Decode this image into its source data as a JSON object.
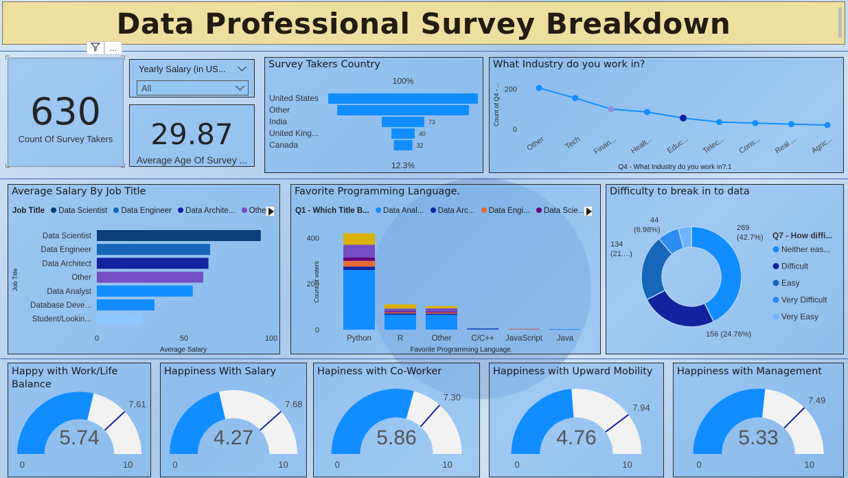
{
  "title": "Data Professional Survey Breakdown",
  "kpis": {
    "count": {
      "value": "630",
      "label": "Count Of Survey Takers"
    },
    "age": {
      "value": "29.87",
      "label": "Average Age Of Survey ..."
    }
  },
  "slicer": {
    "header": "Yearly Salary (in US...",
    "value": "All"
  },
  "visual_header": {
    "filter_icon": "filter-icon",
    "more_icon": "more-options-icon",
    "more_label": "..."
  },
  "country": {
    "title": "Survey Takers Country",
    "top_label": "100%",
    "bottom_label": "12.3%"
  },
  "industry": {
    "title": "What Industry do you work in?",
    "y_axis_label": "Count of Q4 - ...",
    "x_axis_label": "Q4 - What Industry do you work in?.1"
  },
  "salary": {
    "title": "Average Salary By Job Title",
    "legend_title": "Job Title",
    "legend": [
      "Data Scientist",
      "Data Engineer",
      "Data Archite...",
      "Other"
    ],
    "y_axis_label": "Job Title",
    "x_axis_label": "Average Salary"
  },
  "language": {
    "title": "Favorite Programming Language.",
    "legend_title": "Q1 - Which Title B...",
    "legend": [
      "Data Anal...",
      "Data Arc...",
      "Data Engi...",
      "Data Scie..."
    ],
    "y_axis_label": "Count of voters",
    "x_axis_label": "Favorite Programming Language."
  },
  "difficulty": {
    "title": "Difficulty to break in to data",
    "legend_title": "Q7 - How diffi...",
    "labels": {
      "a_line1": "269",
      "a_line2": "(42.7%)",
      "b_line1": "156 (24.76%)",
      "c_line1": "134",
      "c_line2": "(21....)",
      "d_line1": "44",
      "d_line2": "(6.98%)"
    }
  },
  "gauges": [
    {
      "title": "Happy with Work/Life Balance",
      "value": "5.74",
      "target": "7.61",
      "min": "0",
      "max": "10",
      "v": 5.74,
      "t": 7.61
    },
    {
      "title": "Happiness With Salary",
      "value": "4.27",
      "target": "7.68",
      "min": "0",
      "max": "10",
      "v": 4.27,
      "t": 7.68
    },
    {
      "title": "Hapiness with Co-Worker",
      "value": "5.86",
      "target": "7.30",
      "min": "0",
      "max": "10",
      "v": 5.86,
      "t": 7.3
    },
    {
      "title": "Happiness with Upward Mobility",
      "value": "4.76",
      "target": "7.94",
      "min": "0",
      "max": "10",
      "v": 4.76,
      "t": 7.94
    },
    {
      "title": "Happiness with Management",
      "value": "5.33",
      "target": "7.49",
      "min": "0",
      "max": "10",
      "v": 5.33,
      "t": 7.49
    }
  ],
  "colors": {
    "primary": "#118dff",
    "navy": "#12239e",
    "dark": "#0b3f7a",
    "purple": "#744ec2",
    "orange": "#e66c37",
    "gold": "#d9b300",
    "violet": "#6b007b",
    "light": "#8cc8ff",
    "track": "#f2f2f2"
  },
  "chart_data": [
    {
      "type": "bar",
      "title": "Survey Takers Country",
      "orientation": "funnel",
      "categories": [
        "United States",
        "Other",
        "India",
        "United King...",
        "Canada"
      ],
      "values": [
        258,
        227,
        73,
        40,
        32
      ],
      "data_labels": [
        "",
        "",
        "73",
        "40",
        "32"
      ]
    },
    {
      "type": "line",
      "title": "What Industry do you work in?",
      "categories": [
        "Other",
        "Tech",
        "Finan...",
        "Healt...",
        "Educ...",
        "Telec...",
        "Cons...",
        "Real ...",
        "Agric..."
      ],
      "values": [
        205,
        155,
        100,
        85,
        55,
        35,
        30,
        25,
        20
      ],
      "yticks": [
        0,
        200
      ],
      "ylim": [
        0,
        260
      ]
    },
    {
      "type": "bar",
      "title": "Average Salary By Job Title",
      "orientation": "horizontal",
      "categories": [
        "Data Scientist",
        "Data Engineer",
        "Data Architect",
        "Other",
        "Data Analyst",
        "Database Deve...",
        "Student/Lookin..."
      ],
      "values": [
        94,
        65,
        64,
        61,
        55,
        33,
        26
      ],
      "colors": [
        "#0b3f7a",
        "#1666ba",
        "#12239e",
        "#744ec2",
        "#118dff",
        "#118dff",
        "#8cc8ff"
      ],
      "xticks": [
        0,
        50,
        100
      ],
      "xlim": [
        0,
        100
      ]
    },
    {
      "type": "bar",
      "title": "Favorite Programming Language.",
      "stacked": true,
      "categories": [
        "Python",
        "R",
        "Other",
        "C/C++",
        "JavaScript",
        "Java"
      ],
      "series": [
        {
          "name": "Data Anal...",
          "values": [
            260,
            65,
            65,
            4,
            3,
            2
          ],
          "color": "#118dff"
        },
        {
          "name": "Data Arc...",
          "values": [
            15,
            6,
            5,
            1,
            0,
            0
          ],
          "color": "#12239e"
        },
        {
          "name": "Data Engi...",
          "values": [
            25,
            5,
            5,
            0,
            1,
            0
          ],
          "color": "#e66c37"
        },
        {
          "name": "Data Scie...",
          "values": [
            15,
            4,
            3,
            0,
            0,
            0
          ],
          "color": "#6b007b"
        },
        {
          "name": "",
          "values": [
            55,
            12,
            15,
            0,
            0,
            0
          ],
          "color": "#744ec2"
        },
        {
          "name": "",
          "values": [
            50,
            18,
            10,
            0,
            0,
            0
          ],
          "color": "#d9b300"
        }
      ],
      "yticks": [
        0,
        200,
        400
      ],
      "ylim": [
        0,
        470
      ]
    },
    {
      "type": "pie",
      "title": "Difficulty to break in to data",
      "donut": true,
      "categories": [
        "Neither eas...",
        "Difficult",
        "Easy",
        "Very Difficult",
        "Very Easy"
      ],
      "values": [
        269,
        156,
        134,
        44,
        27
      ],
      "colors": [
        "#118dff",
        "#12239e",
        "#1666ba",
        "#2c8cf0",
        "#6fb4ff"
      ]
    }
  ]
}
